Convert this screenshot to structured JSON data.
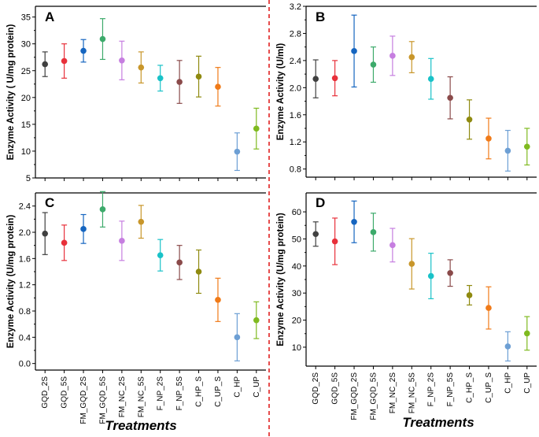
{
  "categories": [
    "GQD_2S",
    "GQD_5S",
    "FM_GQD_2S",
    "FM_GQD_5S",
    "FM_NC_2S",
    "FM_NC_5S",
    "F_NP_2S",
    "F_NP_5S",
    "C_HP_S",
    "C_UP_S",
    "C_HP",
    "C_UP"
  ],
  "colors": [
    "#404040",
    "#e8303a",
    "#1565c0",
    "#3daa6b",
    "#c67ee0",
    "#c8962a",
    "#19c2c8",
    "#8a4a4a",
    "#8f8a10",
    "#f07a18",
    "#6d9fd4",
    "#7fba1f"
  ],
  "xlabel": "Treatments",
  "chart_data": [
    {
      "type": "scatter",
      "panel": "A",
      "ylabel": "Enzyme Activity ( U/mg protein)",
      "ylim": [
        5,
        37
      ],
      "yticks": [
        "5",
        "10",
        "15",
        "20",
        "25",
        "30",
        "35"
      ],
      "values": [
        26.2,
        26.8,
        28.7,
        30.9,
        26.9,
        25.6,
        23.6,
        22.9,
        23.9,
        22.0,
        9.9,
        14.2
      ],
      "errors": [
        2.3,
        3.2,
        2.1,
        3.8,
        3.6,
        2.9,
        2.4,
        4.0,
        3.8,
        3.6,
        3.5,
        3.8
      ]
    },
    {
      "type": "scatter",
      "panel": "B",
      "ylabel": "Enzyme Activity (U/ml)",
      "ylim": [
        0.68,
        3.2
      ],
      "yticks": [
        "0.8",
        "1.2",
        "1.6",
        "2.0",
        "2.4",
        "2.8",
        "3.2"
      ],
      "values": [
        2.13,
        2.14,
        2.54,
        2.34,
        2.47,
        2.45,
        2.13,
        1.85,
        1.53,
        1.25,
        1.07,
        1.13
      ],
      "errors": [
        0.28,
        0.26,
        0.53,
        0.26,
        0.29,
        0.23,
        0.3,
        0.31,
        0.29,
        0.3,
        0.3,
        0.27
      ]
    },
    {
      "type": "scatter",
      "panel": "C",
      "ylabel": "Enzyme Activity (U/mg protein)",
      "ylim": [
        -0.1,
        2.6
      ],
      "yticks": [
        "0.0",
        "0.4",
        "0.8",
        "1.2",
        "1.6",
        "2.0",
        "2.4"
      ],
      "values": [
        1.98,
        1.84,
        2.05,
        2.35,
        1.87,
        2.16,
        1.65,
        1.54,
        1.4,
        0.97,
        0.4,
        0.66
      ],
      "errors": [
        0.32,
        0.27,
        0.22,
        0.27,
        0.3,
        0.25,
        0.24,
        0.26,
        0.33,
        0.33,
        0.36,
        0.28
      ]
    },
    {
      "type": "scatter",
      "panel": "D",
      "ylabel": "Enzyme Activity (U/mg protein)",
      "ylim": [
        3,
        67
      ],
      "yticks": [
        "10",
        "20",
        "30",
        "40",
        "50",
        "60"
      ],
      "values": [
        51.8,
        49.1,
        56.3,
        52.5,
        47.7,
        40.8,
        36.3,
        37.4,
        29.2,
        24.5,
        10.3,
        15.1
      ],
      "errors": [
        4.5,
        8.6,
        7.7,
        7.0,
        6.2,
        9.3,
        8.4,
        4.9,
        3.6,
        7.8,
        5.4,
        6.2
      ]
    }
  ]
}
